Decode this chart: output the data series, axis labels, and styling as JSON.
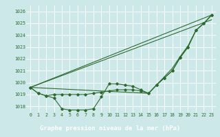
{
  "line_color": "#2d6a2d",
  "bg_color": "#cce8e8",
  "grid_color": "#b0d8d8",
  "xlabel": "Graphe pression niveau de la mer (hPa)",
  "ylim": [
    1017.5,
    1026.5
  ],
  "xlim": [
    -0.5,
    23.5
  ],
  "yticks": [
    1018,
    1019,
    1020,
    1021,
    1022,
    1023,
    1024,
    1025,
    1026
  ],
  "xticks": [
    0,
    1,
    2,
    3,
    4,
    5,
    6,
    7,
    8,
    9,
    10,
    11,
    12,
    13,
    14,
    15,
    16,
    17,
    18,
    19,
    20,
    21,
    22,
    23
  ],
  "tick_fontsize": 4.8,
  "xlabel_fontsize": 6.5,
  "line1_x": [
    0,
    1,
    2,
    3,
    4,
    5,
    6,
    7,
    8,
    9,
    10,
    11,
    12,
    13,
    14,
    15,
    16,
    17,
    18,
    19,
    20,
    21,
    22,
    23
  ],
  "line1_y": [
    1019.6,
    1019.1,
    1018.9,
    1018.7,
    1017.8,
    1017.7,
    1017.7,
    1017.7,
    1017.8,
    1018.8,
    1019.9,
    1019.9,
    1019.8,
    1019.7,
    1019.4,
    1019.1,
    1019.8,
    1020.4,
    1021.0,
    1022.1,
    1023.0,
    1024.4,
    1025.0,
    1025.7
  ],
  "line2_x": [
    0,
    1,
    2,
    3,
    4,
    5,
    6,
    7,
    8,
    9,
    10,
    11,
    12,
    13,
    14,
    15,
    16,
    17,
    18,
    19,
    20,
    21,
    22,
    23
  ],
  "line2_y": [
    1019.6,
    1019.1,
    1018.9,
    1019.0,
    1019.0,
    1019.0,
    1019.0,
    1019.0,
    1019.1,
    1019.2,
    1019.3,
    1019.4,
    1019.4,
    1019.4,
    1019.3,
    1019.1,
    1019.8,
    1020.4,
    1021.0,
    1022.1,
    1023.0,
    1024.4,
    1025.0,
    1025.7
  ],
  "line3_x": [
    0,
    23
  ],
  "line3_y": [
    1019.6,
    1025.7
  ],
  "line4_x": [
    0,
    23
  ],
  "line4_y": [
    1019.6,
    1025.3
  ],
  "line5_x": [
    0,
    15,
    16,
    17,
    18,
    19,
    20,
    21,
    22,
    23
  ],
  "line5_y": [
    1019.6,
    1019.1,
    1019.8,
    1020.5,
    1021.2,
    1022.2,
    1023.1,
    1024.4,
    1025.0,
    1025.7
  ]
}
